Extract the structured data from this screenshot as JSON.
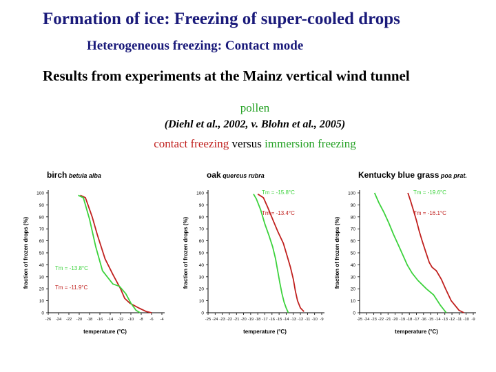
{
  "header": {
    "title": "Formation of ice: Freezing of super-cooled drops",
    "subtitle": "Heterogeneous freezing: Contact mode",
    "results": "Results from experiments at the Mainz vertical wind tunnel",
    "pollen": "pollen",
    "citation": "(Diehl et al., 2002,   v. Blohn et al., 2005)",
    "legend": {
      "contact": "contact freezing",
      "versus": " versus ",
      "immersion": "immersion freezing"
    }
  },
  "colors": {
    "contact": "#c0201e",
    "immersion": "#3cd23c",
    "title": "#1a1a7a"
  },
  "chart_data": [
    {
      "type": "line",
      "title": "birch",
      "subtitle": "betula alba",
      "xlabel": "temperature (°C)",
      "ylabel": "fraction of frozen drops (%)",
      "xlim": [
        -26,
        -4
      ],
      "ylim": [
        0,
        100
      ],
      "x_ticks": [
        -26,
        -24,
        -22,
        -20,
        -18,
        -16,
        -14,
        -12,
        -10,
        -8,
        -6,
        -4
      ],
      "x_tick_labels": [
        "-26",
        "-24",
        "-22",
        "-20",
        "-18",
        "-16",
        "-14",
        "-12",
        "-10",
        "-8",
        "-6",
        "-4"
      ],
      "y_ticks": [
        0,
        10,
        20,
        30,
        40,
        50,
        60,
        70,
        80,
        90,
        100
      ],
      "annotations": [
        {
          "text": "Tm = -13.8°C",
          "series": "immersion freezing"
        },
        {
          "text": "Tm = -11.9°C",
          "series": "contact freezing"
        }
      ],
      "series": [
        {
          "key": "contact",
          "color": "#c0201e",
          "x": [
            -19.8,
            -18.8,
            -17.5,
            -16.5,
            -15.0,
            -13.5,
            -12.0,
            -11.2,
            -10.2,
            -8.5,
            -7.0,
            -6.0
          ],
          "y": [
            98,
            96,
            80,
            65,
            45,
            32,
            20,
            12,
            8,
            4,
            1,
            0
          ]
        },
        {
          "key": "immersion",
          "color": "#3cd23c",
          "x": [
            -20.2,
            -19.2,
            -18.0,
            -16.8,
            -15.5,
            -13.5,
            -12.2,
            -11.0,
            -10.0,
            -9.0,
            -8.2
          ],
          "y": [
            98,
            96,
            78,
            55,
            35,
            24,
            22,
            16,
            8,
            2,
            0
          ]
        }
      ]
    },
    {
      "type": "line",
      "title": "oak",
      "subtitle": "quercus rubra",
      "xlabel": "temperature (°C)",
      "ylabel": "fraction of frozen drops (%)",
      "xlim": [
        -25,
        -9
      ],
      "ylim": [
        0,
        100
      ],
      "x_ticks": [
        -25,
        -24,
        -23,
        -22,
        -21,
        -20,
        -19,
        -18,
        -17,
        -16,
        -15,
        -14,
        -13,
        -12,
        -11,
        -10,
        -9
      ],
      "x_tick_labels": [
        "-25",
        "-24",
        "-23",
        "-22",
        "-21",
        "-20",
        "-19",
        "-18",
        "-17",
        "-16",
        "-15",
        "-14",
        "-13",
        "-12",
        "-11",
        "-10",
        "-9"
      ],
      "y_ticks": [
        0,
        10,
        20,
        30,
        40,
        50,
        60,
        70,
        80,
        90,
        100
      ],
      "annotations": [
        {
          "text": "Tm = -15.8°C",
          "series": "immersion freezing"
        },
        {
          "text": "Tm = -13.4°C",
          "series": "contact freezing"
        }
      ],
      "series": [
        {
          "key": "contact",
          "color": "#c0201e",
          "x": [
            -18.0,
            -17.2,
            -16.6,
            -15.9,
            -15.2,
            -14.4,
            -13.9,
            -13.4,
            -13.0,
            -12.7,
            -12.4,
            -12.0,
            -11.5
          ],
          "y": [
            99,
            96,
            88,
            78,
            68,
            58,
            48,
            38,
            28,
            18,
            10,
            4,
            1
          ]
        },
        {
          "key": "immersion",
          "color": "#3cd23c",
          "x": [
            -18.6,
            -18.2,
            -17.6,
            -17.0,
            -16.4,
            -15.9,
            -15.5,
            -15.2,
            -14.9,
            -14.6,
            -14.3,
            -14.0,
            -13.7
          ],
          "y": [
            99,
            95,
            86,
            74,
            64,
            55,
            45,
            35,
            25,
            16,
            9,
            4,
            0
          ]
        }
      ]
    },
    {
      "type": "line",
      "title": "Kentucky blue grass",
      "subtitle": "poa prat.",
      "xlabel": "temperature (°C)",
      "ylabel": "fraction of frozen drops (%)",
      "xlim": [
        -25,
        -9
      ],
      "ylim": [
        0,
        100
      ],
      "x_ticks": [
        -25,
        -24,
        -23,
        -22,
        -21,
        -20,
        -19,
        -18,
        -17,
        -16,
        -15,
        -14,
        -13,
        -12,
        -11,
        -10,
        -9
      ],
      "x_tick_labels": [
        "-25",
        "-24",
        "-23",
        "-22",
        "-21",
        "-20",
        "-19",
        "-18",
        "-17",
        "-16",
        "-15",
        "-14",
        "-13",
        "-12",
        "-11",
        "-10",
        "-9"
      ],
      "y_ticks": [
        0,
        10,
        20,
        30,
        40,
        50,
        60,
        70,
        80,
        90,
        100
      ],
      "annotations": [
        {
          "text": "Tm = -19.6°C",
          "series": "immersion freezing"
        },
        {
          "text": "Tm = -16.1°C",
          "series": "contact freezing"
        }
      ],
      "series": [
        {
          "key": "contact",
          "color": "#c0201e",
          "x": [
            -18.2,
            -17.8,
            -17.4,
            -17.0,
            -16.6,
            -16.2,
            -15.7,
            -15.2,
            -14.8,
            -14.2,
            -13.5,
            -12.9,
            -12.1,
            -11.0,
            -10.3
          ],
          "y": [
            100,
            93,
            85,
            77,
            68,
            60,
            51,
            42,
            38,
            35,
            28,
            20,
            10,
            2,
            0
          ]
        },
        {
          "key": "immersion",
          "color": "#3cd23c",
          "x": [
            -22.9,
            -22.3,
            -21.6,
            -20.9,
            -20.2,
            -19.5,
            -18.9,
            -18.3,
            -17.6,
            -16.8,
            -15.6,
            -14.6,
            -13.6,
            -12.8
          ],
          "y": [
            100,
            92,
            84,
            75,
            65,
            56,
            48,
            40,
            33,
            27,
            20,
            15,
            6,
            0
          ]
        }
      ]
    }
  ]
}
